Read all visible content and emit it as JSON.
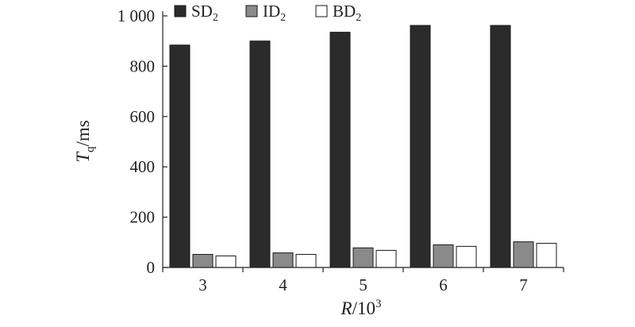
{
  "chart_data": {
    "type": "bar",
    "categories": [
      "3",
      "4",
      "5",
      "6",
      "7"
    ],
    "series": [
      {
        "name": "SD",
        "name_sub": "2",
        "values": [
          884,
          900,
          935,
          962,
          962
        ],
        "color": "#2b2b2b"
      },
      {
        "name": "ID",
        "name_sub": "2",
        "values": [
          52,
          58,
          78,
          90,
          102
        ],
        "color": "#8a8a8a"
      },
      {
        "name": "BD",
        "name_sub": "2",
        "values": [
          46,
          52,
          68,
          84,
          96
        ],
        "color": "#ffffff"
      }
    ],
    "ylim": [
      0,
      1000
    ],
    "yticks": [
      0,
      200,
      400,
      600,
      800,
      1000
    ],
    "ytick_labels": [
      "0",
      "200",
      "400",
      "600",
      "800",
      "1 000"
    ],
    "ylabel": {
      "main": "T",
      "sub": "q",
      "rest": "/ms"
    },
    "xlabel": {
      "main": "R",
      "rest": "/10",
      "sup": "3"
    },
    "legend": "top",
    "grid": false
  }
}
